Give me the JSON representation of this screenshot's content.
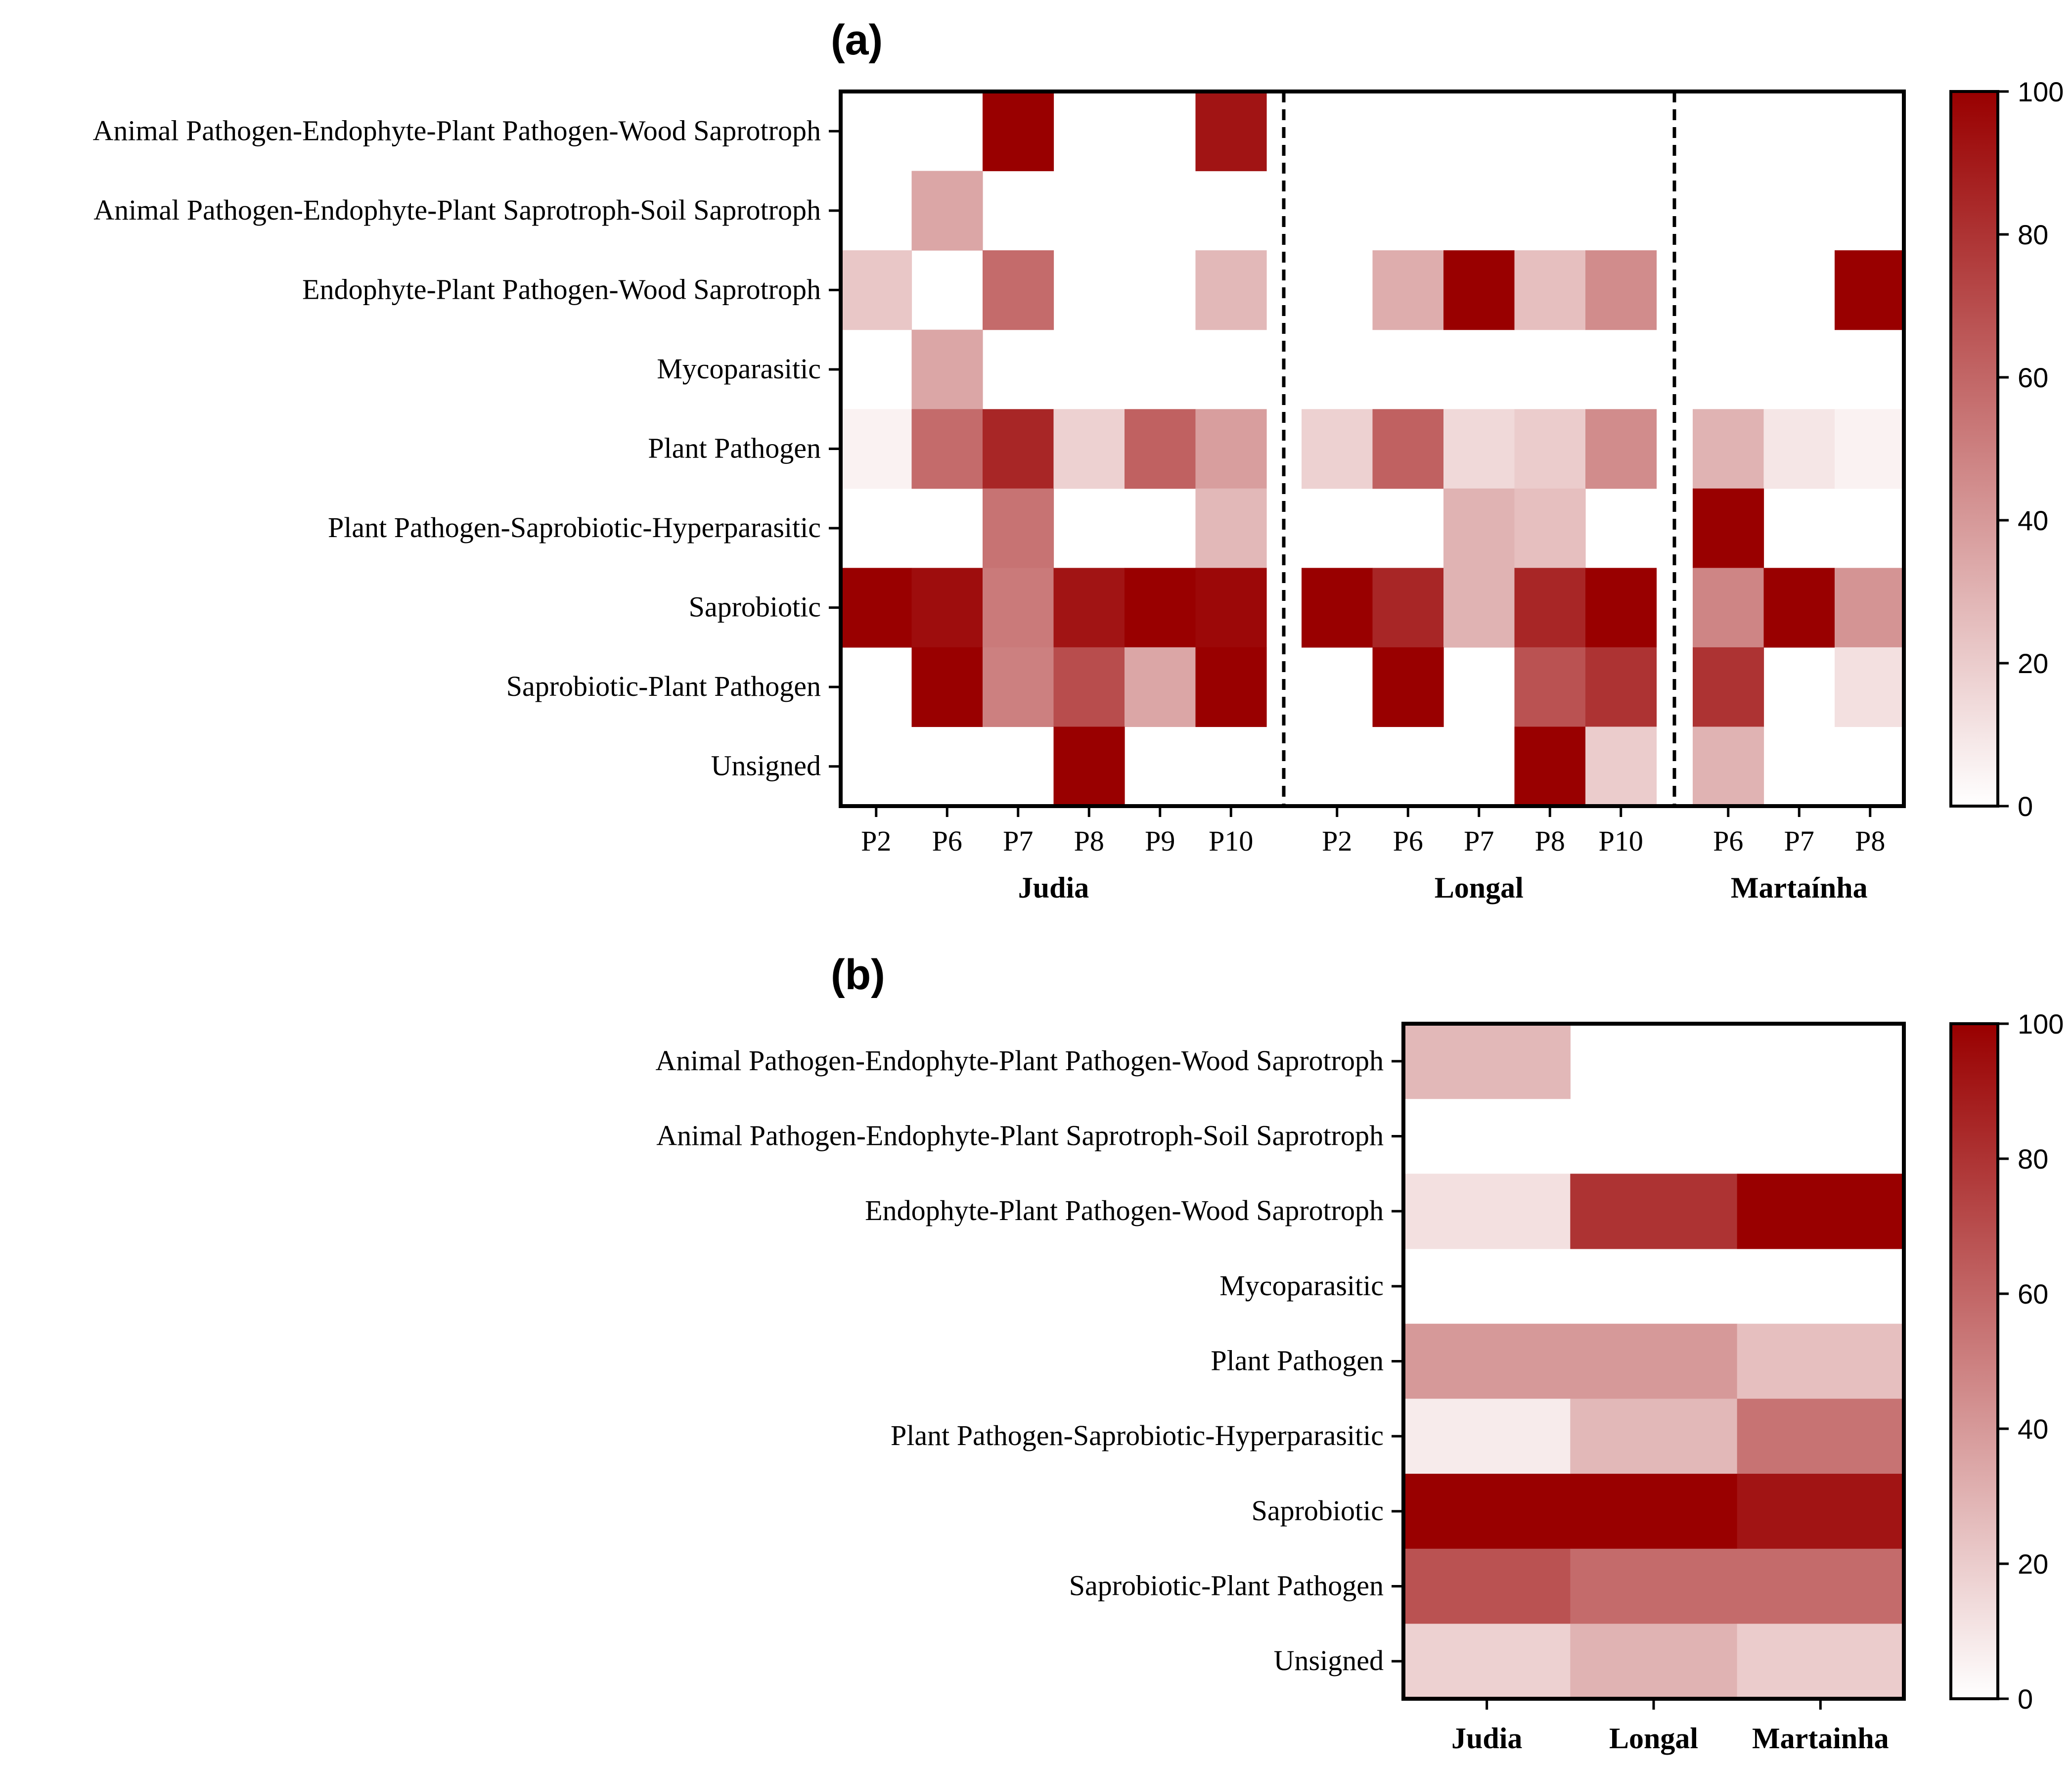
{
  "chart_data": [
    {
      "panel": "(a)",
      "type": "heatmap",
      "title": "(a)",
      "rows": [
        "Animal Pathogen-Endophyte-Plant Pathogen-Wood Saprotroph",
        "Animal Pathogen-Endophyte-Plant Saprotroph-Soil Saprotroph",
        "Endophyte-Plant Pathogen-Wood Saprotroph",
        "Mycoparasitic",
        "Plant Pathogen",
        "Plant Pathogen-Saprobiotic-Hyperparasitic",
        "Saprobiotic",
        "Saprobiotic-Plant Pathogen",
        "Unsigned"
      ],
      "groups": [
        {
          "name": "Judia",
          "columns": [
            "P2",
            "P6",
            "P7",
            "P8",
            "P9",
            "P10"
          ],
          "values": [
            [
              0,
              0,
              100,
              0,
              0,
              92
            ],
            [
              0,
              35,
              0,
              0,
              0,
              0
            ],
            [
              22,
              0,
              58,
              0,
              0,
              28
            ],
            [
              0,
              35,
              0,
              0,
              0,
              0
            ],
            [
              5,
              58,
              85,
              18,
              62,
              38
            ],
            [
              0,
              0,
              55,
              0,
              0,
              28
            ],
            [
              100,
              95,
              52,
              92,
              100,
              97
            ],
            [
              0,
              100,
              50,
              70,
              35,
              100
            ],
            [
              0,
              0,
              0,
              100,
              0,
              0
            ]
          ]
        },
        {
          "name": "Longal",
          "columns": [
            "P2",
            "P6",
            "P7",
            "P8",
            "P10"
          ],
          "values": [
            [
              0,
              0,
              0,
              0,
              0
            ],
            [
              0,
              0,
              0,
              0,
              0
            ],
            [
              0,
              32,
              100,
              25,
              45
            ],
            [
              0,
              0,
              0,
              0,
              0
            ],
            [
              18,
              62,
              15,
              20,
              45
            ],
            [
              0,
              0,
              30,
              25,
              0
            ],
            [
              100,
              85,
              30,
              85,
              100
            ],
            [
              0,
              100,
              0,
              68,
              80
            ],
            [
              0,
              0,
              0,
              100,
              20
            ]
          ]
        },
        {
          "name": "Martaínha",
          "columns": [
            "P6",
            "P7",
            "P8"
          ],
          "values": [
            [
              0,
              0,
              0
            ],
            [
              0,
              0,
              0
            ],
            [
              0,
              0,
              100
            ],
            [
              0,
              0,
              0
            ],
            [
              30,
              10,
              5
            ],
            [
              100,
              0,
              0
            ],
            [
              48,
              100,
              42
            ],
            [
              80,
              0,
              12
            ],
            [
              30,
              0,
              0
            ]
          ]
        }
      ],
      "colorbar": {
        "range": [
          0,
          100
        ],
        "ticks": [
          0,
          20,
          40,
          60,
          80,
          100
        ],
        "low_color": "#ffffff",
        "high_color": "#990000"
      }
    },
    {
      "panel": "(b)",
      "type": "heatmap",
      "title": "(b)",
      "rows": [
        "Animal Pathogen-Endophyte-Plant Pathogen-Wood Saprotroph",
        "Animal Pathogen-Endophyte-Plant Saprotroph-Soil Saprotroph",
        "Endophyte-Plant Pathogen-Wood Saprotroph",
        "Mycoparasitic",
        "Plant Pathogen",
        "Plant Pathogen-Saprobiotic-Hyperparasitic",
        "Saprobiotic",
        "Saprobiotic-Plant Pathogen",
        "Unsigned"
      ],
      "columns": [
        "Judia",
        "Longal",
        "Martainha"
      ],
      "values": [
        [
          28,
          0,
          0
        ],
        [
          0,
          0,
          0
        ],
        [
          12,
          80,
          100
        ],
        [
          0,
          0,
          0
        ],
        [
          40,
          40,
          25
        ],
        [
          8,
          28,
          55
        ],
        [
          100,
          100,
          92
        ],
        [
          68,
          58,
          58
        ],
        [
          18,
          30,
          20
        ]
      ],
      "colorbar": {
        "range": [
          0,
          100
        ],
        "ticks": [
          0,
          20,
          40,
          60,
          80,
          100
        ],
        "low_color": "#ffffff",
        "high_color": "#990000"
      }
    }
  ]
}
